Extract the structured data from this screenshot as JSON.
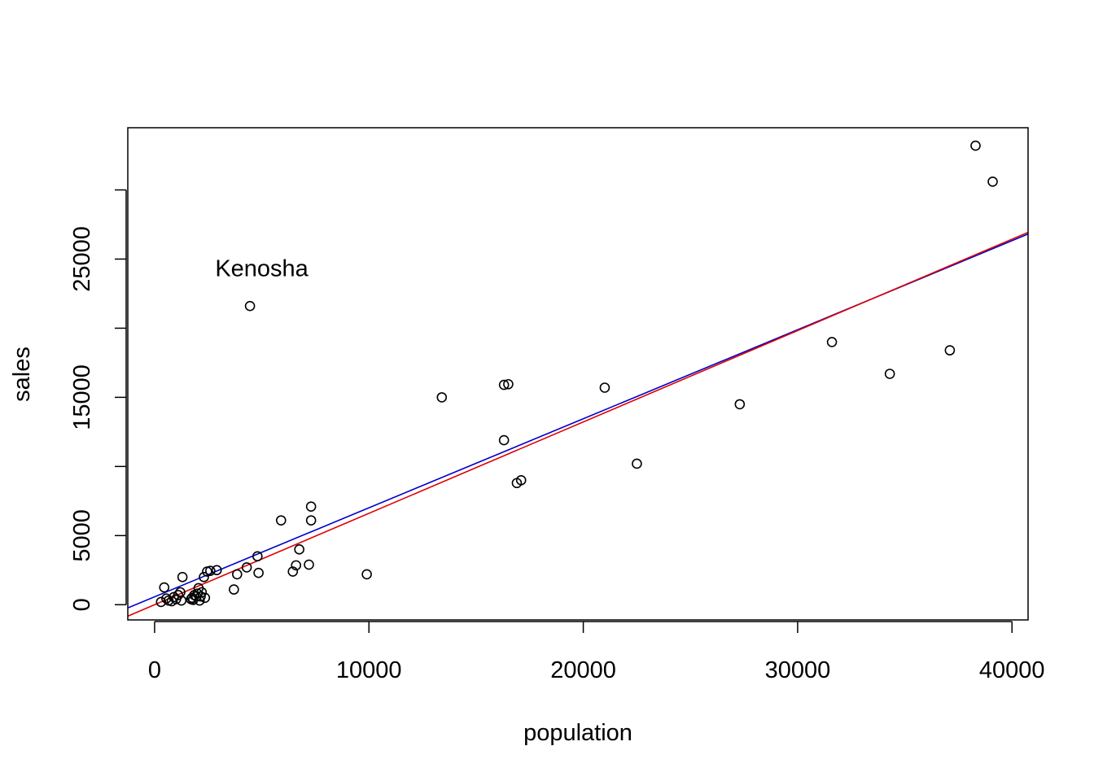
{
  "chart_data": {
    "type": "scatter",
    "title": "",
    "xlabel": "population",
    "ylabel": "sales",
    "xlim": [
      -1250,
      40750
    ],
    "ylim": [
      -1100,
      34500
    ],
    "grid": false,
    "x_ticks": [
      0,
      10000,
      20000,
      30000,
      40000
    ],
    "x_tick_labels": [
      "0",
      "10000",
      "20000",
      "30000",
      "40000"
    ],
    "y_ticks": [
      0,
      5000,
      10000,
      15000,
      20000,
      25000,
      30000
    ],
    "y_tick_labels": [
      "0",
      "5000",
      "",
      "15000",
      "",
      "25000",
      ""
    ],
    "series": [
      {
        "marker": "open-circle",
        "color": "#000000",
        "points": [
          [
            300,
            200
          ],
          [
            450,
            1250
          ],
          [
            550,
            450
          ],
          [
            650,
            300
          ],
          [
            800,
            250
          ],
          [
            900,
            550
          ],
          [
            1000,
            400
          ],
          [
            1100,
            700
          ],
          [
            1200,
            900
          ],
          [
            1250,
            300
          ],
          [
            1300,
            2000
          ],
          [
            1700,
            400
          ],
          [
            1750,
            500
          ],
          [
            1800,
            350
          ],
          [
            1850,
            700
          ],
          [
            1950,
            600
          ],
          [
            2000,
            800
          ],
          [
            2050,
            1200
          ],
          [
            2100,
            300
          ],
          [
            2150,
            600
          ],
          [
            2200,
            900
          ],
          [
            2300,
            2000
          ],
          [
            2350,
            500
          ],
          [
            2450,
            2400
          ],
          [
            2600,
            2450
          ],
          [
            2900,
            2500
          ],
          [
            3700,
            1100
          ],
          [
            3850,
            2200
          ],
          [
            4300,
            2700
          ],
          [
            4800,
            3500
          ],
          [
            4850,
            2300
          ],
          [
            4450,
            21600
          ],
          [
            5900,
            6100
          ],
          [
            6450,
            2400
          ],
          [
            6600,
            2850
          ],
          [
            6750,
            4000
          ],
          [
            7200,
            2900
          ],
          [
            7300,
            7100
          ],
          [
            7300,
            6100
          ],
          [
            9900,
            2200
          ],
          [
            13400,
            15000
          ],
          [
            16300,
            11900
          ],
          [
            16300,
            15900
          ],
          [
            16500,
            15950
          ],
          [
            16900,
            8800
          ],
          [
            17100,
            9000
          ],
          [
            21000,
            15700
          ],
          [
            22500,
            10200
          ],
          [
            27300,
            14500
          ],
          [
            31600,
            19000
          ],
          [
            34300,
            16700
          ],
          [
            37100,
            18400
          ],
          [
            38300,
            33200
          ],
          [
            39100,
            30600
          ]
        ]
      },
      {
        "kind": "regression-line",
        "color": "#0000CD",
        "intercept": 570,
        "slope": 0.644
      },
      {
        "kind": "regression-line",
        "color": "#E00000",
        "intercept": 0,
        "slope": 0.661
      }
    ],
    "annotations": [
      {
        "text": "Kenosha",
        "x": 5000,
        "y": 23750
      }
    ]
  }
}
